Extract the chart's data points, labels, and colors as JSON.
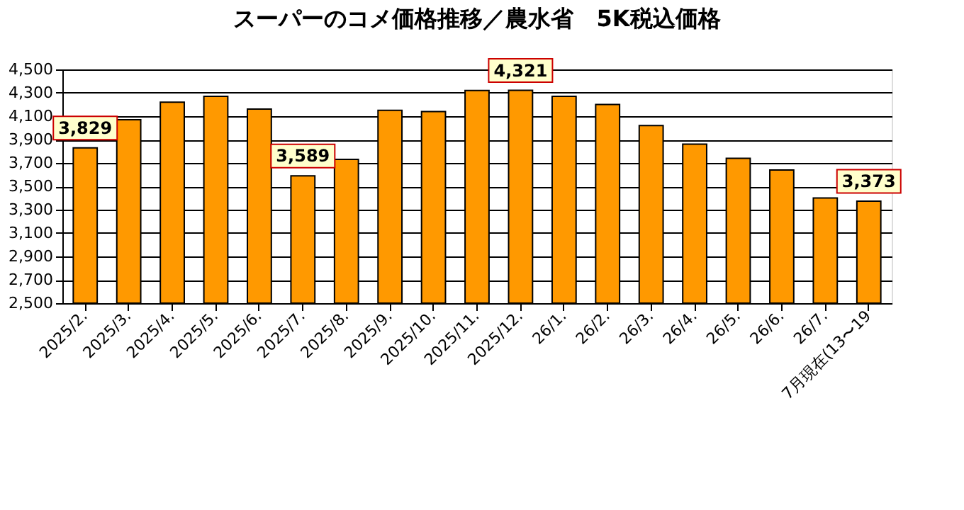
{
  "chart_data": {
    "type": "bar",
    "title": "スーパーのコメ価格推移／農水省　5K税込価格",
    "categories": [
      "2025/2.",
      "2025/3.",
      "2025/4.",
      "2025/5.",
      "2025/6.",
      "2025/7.",
      "2025/8.",
      "2025/9.",
      "2025/10.",
      "2025/11.",
      "2025/12.",
      "26/1.",
      "26/2.",
      "26/3.",
      "26/4.",
      "26/5.",
      "26/6.",
      "26/7.",
      "7月現在(13〜19"
    ],
    "values": [
      3829,
      4070,
      4220,
      4270,
      4160,
      3589,
      3730,
      4150,
      4140,
      4320,
      4321,
      4270,
      4200,
      4020,
      3860,
      3740,
      3640,
      3400,
      3373
    ],
    "value_labels": [
      "3,829",
      null,
      null,
      null,
      null,
      "3,589",
      null,
      null,
      null,
      null,
      "4,321",
      null,
      null,
      null,
      null,
      null,
      null,
      null,
      "3,373"
    ],
    "color": "#ff9900",
    "ylim": [
      2500,
      4500
    ],
    "yticks": [
      {
        "value": 2500,
        "label": "2,500"
      },
      {
        "value": 2700,
        "label": "2,700"
      },
      {
        "value": 2900,
        "label": "2,900"
      },
      {
        "value": 3100,
        "label": "3,100"
      },
      {
        "value": 3300,
        "label": "3,300"
      },
      {
        "value": 3500,
        "label": "3,500"
      },
      {
        "value": 3700,
        "label": "3,700"
      },
      {
        "value": 3900,
        "label": "3,900"
      },
      {
        "value": 4100,
        "label": "4,100"
      },
      {
        "value": 4300,
        "label": "4,300"
      },
      {
        "value": 4500,
        "label": "4,500"
      }
    ],
    "grid": "y"
  }
}
